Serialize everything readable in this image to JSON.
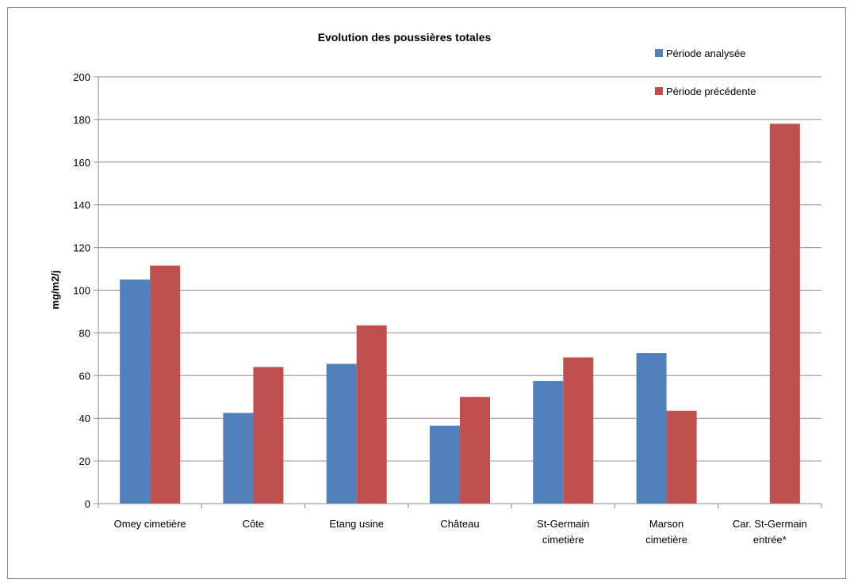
{
  "chart_data": {
    "type": "bar",
    "title": "Evolution des poussières totales",
    "xlabel": "",
    "ylabel": "mg/m2/j",
    "ylim": [
      0,
      200
    ],
    "yticks": [
      0,
      20,
      40,
      60,
      80,
      100,
      120,
      140,
      160,
      180,
      200
    ],
    "categories": [
      [
        "Omey cimetière"
      ],
      [
        "Côte"
      ],
      [
        "Etang usine"
      ],
      [
        "Château"
      ],
      [
        "St-Germain",
        "cimetière"
      ],
      [
        "Marson",
        "cimetière"
      ],
      [
        "Car. St-Germain",
        "entrée*"
      ]
    ],
    "series": [
      {
        "name": "Période analysée",
        "color": "#4f81bd",
        "values": [
          105,
          42.5,
          65.5,
          36.5,
          57.5,
          70.5,
          null
        ]
      },
      {
        "name": "Période précédente",
        "color": "#c0504d",
        "values": [
          111.5,
          64,
          83.5,
          50,
          68.5,
          43.5,
          178
        ]
      }
    ],
    "grid": true,
    "legend_position": "top-right"
  }
}
